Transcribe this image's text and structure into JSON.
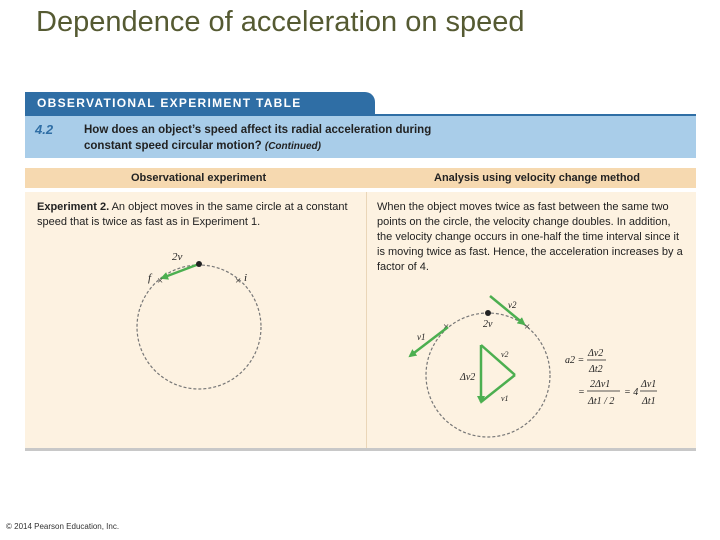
{
  "slide": {
    "title": "Dependence of acceleration on speed"
  },
  "table": {
    "tab_title": "OBSERVATIONAL EXPERIMENT TABLE",
    "number": "4.2",
    "question_line1": "How does an object’s speed affect its radial acceleration during",
    "question_line2": "constant speed circular motion?",
    "continued": "(Continued)",
    "header_left": "Observational experiment",
    "header_right": "Analysis using velocity change method",
    "left_bold": "Experiment 2.",
    "left_text": " An object moves in the same circle at a constant speed that is twice as fast as in Experiment 1.",
    "right_text": "When the object moves twice as fast between the same two points on the circle, the velocity change doubles. In addition, the velocity change occurs in one-half the time interval since it is moving twice as fast. Hence, the acceleration increases by a factor of 4."
  },
  "diagram_left": {
    "speed_label": "2v",
    "final_label": "f",
    "initial_label": "i"
  },
  "diagram_right": {
    "speed_label": "2v",
    "v1_label": "v1",
    "v2_label": "v2",
    "dv2_label": "Δv2",
    "v2_small": "v2",
    "v1_small": "v1"
  },
  "equation": {
    "lhs": "a2 =",
    "frac1_num": "Δv2",
    "frac1_den": "Δt2",
    "eq2": "=",
    "frac2_num": "2Δv1",
    "frac2_den": "Δt1 / 2",
    "eq3": "= 4",
    "frac3_num": "Δv1",
    "frac3_den": "Δt1"
  },
  "colors": {
    "tab": "#2f6ea5",
    "question_band": "#a9cde9",
    "header_band": "#f6d9b0",
    "body": "#fdf2e1",
    "arrow": "#4caf50",
    "title": "#555a32"
  },
  "footer": "© 2014 Pearson Education, Inc."
}
